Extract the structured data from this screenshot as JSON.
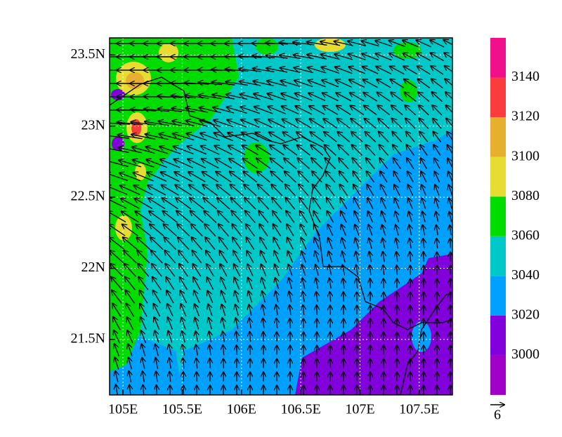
{
  "chart_data": {
    "type": "contour",
    "xlim": [
      104.887,
      107.78
    ],
    "ylim": [
      21.11,
      23.62
    ],
    "xticks": [
      {
        "value": 105,
        "label": "105E"
      },
      {
        "value": 105.5,
        "label": "105.5E"
      },
      {
        "value": 106,
        "label": "106E"
      },
      {
        "value": 106.5,
        "label": "106.5E"
      },
      {
        "value": 107,
        "label": "107E"
      },
      {
        "value": 107.5,
        "label": "107.5E"
      }
    ],
    "yticks": [
      {
        "value": 21.5,
        "label": "21.5N"
      },
      {
        "value": 22,
        "label": "22N"
      },
      {
        "value": 22.5,
        "label": "22.5N"
      },
      {
        "value": 23,
        "label": "23N"
      },
      {
        "value": 23.5,
        "label": "23.5N"
      }
    ],
    "grid": true,
    "colorbar": {
      "levels": [
        3000,
        3020,
        3040,
        3060,
        3080,
        3100,
        3120,
        3140
      ],
      "colors": [
        "#a000c8",
        "#8200dc",
        "#00a0ff",
        "#00c8c8",
        "#00dc00",
        "#e6dc32",
        "#e6af2d",
        "#fa3c3c",
        "#f0108c"
      ]
    },
    "reference_vector": 6
  }
}
